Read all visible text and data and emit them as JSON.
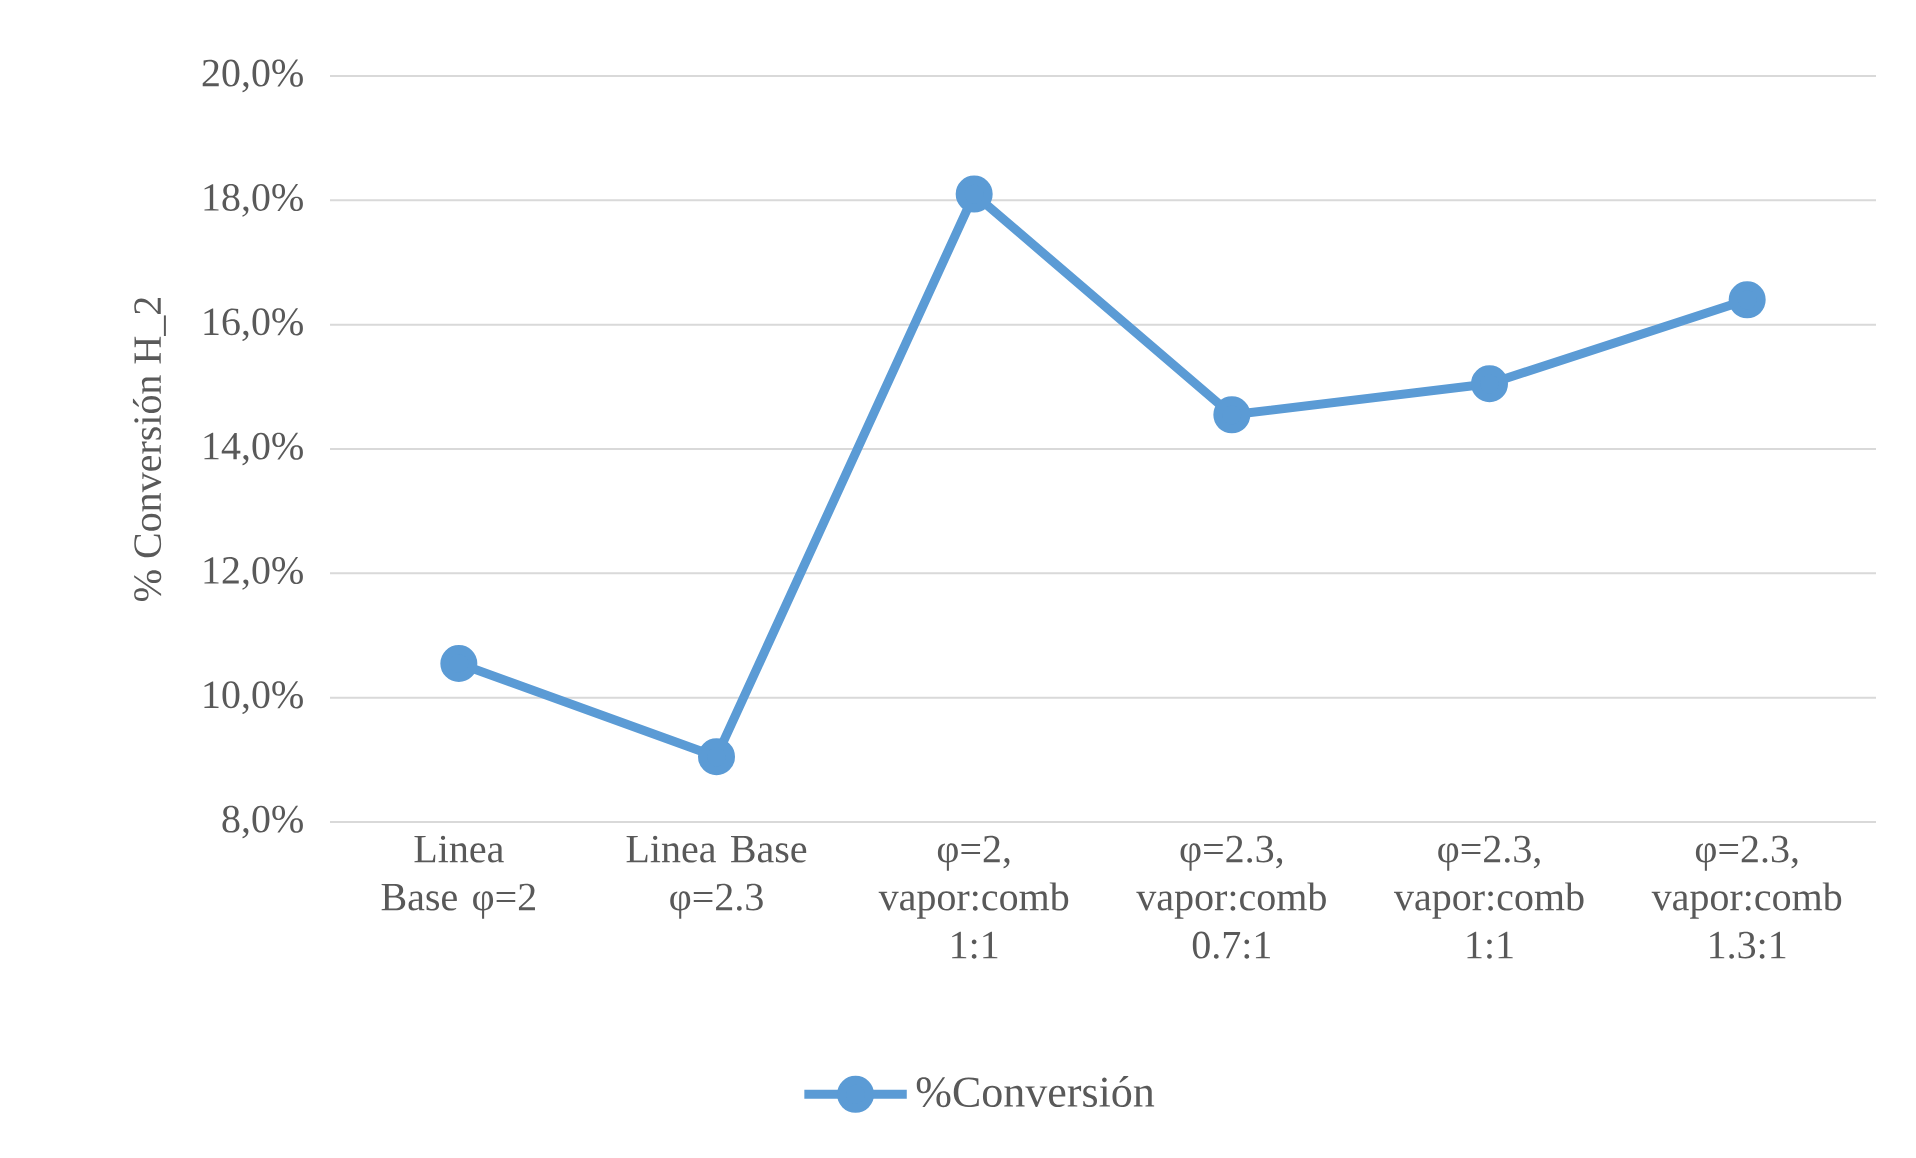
{
  "chart_data": {
    "type": "line",
    "ylabel": "% Conversión H_2",
    "categories": [
      "Linea Base φ=2",
      "Linea Base φ=2.3",
      "φ=2, vapor:comb 1:1",
      "φ=2.3, vapor:comb 0.7:1",
      "φ=2.3, vapor:comb 1:1",
      "φ=2.3, vapor:comb 1.3:1"
    ],
    "series": [
      {
        "name": "%Conversión",
        "color": "#5b9bd5",
        "values": [
          10.55,
          9.05,
          18.1,
          14.55,
          15.05,
          16.4
        ]
      }
    ],
    "ylim": [
      8,
      20
    ],
    "yticks": [
      {
        "value": 8,
        "label": "8,0%"
      },
      {
        "value": 10,
        "label": "10,0%"
      },
      {
        "value": 12,
        "label": "12,0%"
      },
      {
        "value": 14,
        "label": "14,0%"
      },
      {
        "value": 16,
        "label": "16,0%"
      },
      {
        "value": 18,
        "label": "18,0%"
      },
      {
        "value": 20,
        "label": "20,0%"
      }
    ],
    "grid": "y",
    "legend": "bottom",
    "marker": "circle",
    "line_style": "solid"
  }
}
